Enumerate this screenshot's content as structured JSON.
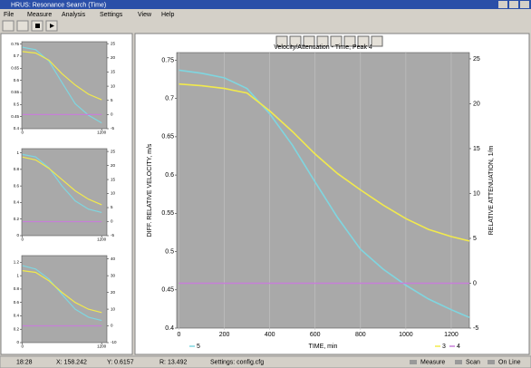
{
  "window": {
    "title": "HRUS: Resonance Search (Time)"
  },
  "menu": [
    "File",
    "Measure",
    "Analysis",
    "Settings",
    "View",
    "Help"
  ],
  "main_chart": {
    "type": "line",
    "title": "Velocity/Attenuation - Time, Peak 4",
    "x_label": "TIME, min",
    "y_label": "DIFF. RELATIVE VELOCITY, m/s",
    "y2_label": "RELATIVE ATTENUATION, 1/m",
    "xlim": [
      -10,
      1280
    ],
    "ylim": [
      0.4,
      0.76
    ],
    "y2lim": [
      -5,
      25.7
    ],
    "xticks": [
      0,
      200,
      400,
      600,
      800,
      1000,
      1200
    ],
    "yticks": [
      0.4,
      0.45,
      0.5,
      0.55,
      0.6,
      0.65,
      0.7,
      0.75
    ],
    "y2ticks": [
      -5,
      0,
      5,
      10,
      15,
      20,
      25
    ],
    "grid": true,
    "x": [
      0,
      100,
      200,
      300,
      400,
      500,
      600,
      700,
      800,
      900,
      1000,
      1100,
      1200,
      1280
    ],
    "series": [
      {
        "name": "5",
        "color": "#7fd6e0",
        "values": [
          0.737,
          0.733,
          0.727,
          0.713,
          0.68,
          0.639,
          0.591,
          0.544,
          0.503,
          0.477,
          0.456,
          0.438,
          0.424,
          0.414
        ]
      },
      {
        "name": "3",
        "color": "#f2ea4c",
        "axis": "y2",
        "values": [
          22.2,
          22,
          21.7,
          21.2,
          19.2,
          16.9,
          14.4,
          12.2,
          10.4,
          8.7,
          7.2,
          6,
          5.2,
          4.7
        ]
      },
      {
        "name": "4",
        "color": "#c77fd8",
        "axis": "y2",
        "values": [
          0,
          0,
          0,
          0,
          0,
          0,
          0,
          0,
          0,
          0,
          0,
          0,
          0,
          0
        ]
      }
    ]
  },
  "mini_charts": [
    {
      "type": "line",
      "xlim": [
        -10,
        1280
      ],
      "ylim": [
        0.4,
        0.76
      ],
      "y2lim": [
        -5,
        25.7
      ],
      "xticks": [
        0,
        1200
      ],
      "yticks": [
        0.4,
        0.45,
        0.5,
        0.55,
        0.6,
        0.65,
        0.7,
        0.75
      ],
      "y2ticks": [
        -5,
        0,
        5,
        10,
        15,
        20,
        25
      ],
      "x": [
        0,
        200,
        400,
        600,
        800,
        1000,
        1200
      ],
      "series": [
        {
          "color": "#7fd6e0",
          "values": [
            0.737,
            0.727,
            0.68,
            0.591,
            0.503,
            0.456,
            0.424
          ]
        },
        {
          "color": "#f2ea4c",
          "axis": "y2",
          "values": [
            22.2,
            21.7,
            19.2,
            14.4,
            10.4,
            7.2,
            5.2
          ]
        },
        {
          "color": "#c77fd8",
          "axis": "y2",
          "values": [
            0,
            0,
            0,
            0,
            0,
            0,
            0
          ]
        }
      ]
    },
    {
      "type": "line",
      "xlim": [
        -10,
        1280
      ],
      "ylim": [
        0,
        1.05
      ],
      "y2lim": [
        -5,
        26
      ],
      "xticks": [
        0,
        1200
      ],
      "yticks": [
        0,
        0.2,
        0.4,
        0.6,
        0.8,
        1
      ],
      "y2ticks": [
        -5,
        0,
        5,
        10,
        15,
        20,
        25
      ],
      "x": [
        0,
        200,
        400,
        600,
        800,
        1000,
        1200
      ],
      "series": [
        {
          "color": "#7fd6e0",
          "values": [
            0.98,
            0.95,
            0.82,
            0.6,
            0.42,
            0.32,
            0.28
          ]
        },
        {
          "color": "#f2ea4c",
          "axis": "y2",
          "values": [
            23,
            22,
            19,
            15,
            11,
            8,
            6
          ]
        },
        {
          "color": "#c77fd8",
          "axis": "y2",
          "values": [
            0,
            0,
            0,
            0,
            0,
            0,
            0
          ]
        }
      ]
    },
    {
      "type": "line",
      "xlim": [
        -10,
        1280
      ],
      "ylim": [
        0,
        1.3
      ],
      "y2lim": [
        -10,
        42
      ],
      "xticks": [
        0,
        1200
      ],
      "yticks": [
        0,
        0.2,
        0.4,
        0.6,
        0.8,
        1,
        1.2
      ],
      "y2ticks": [
        -10,
        0,
        10,
        20,
        30,
        40
      ],
      "x": [
        0,
        200,
        400,
        600,
        800,
        1000,
        1200
      ],
      "series": [
        {
          "color": "#7fd6e0",
          "values": [
            1.15,
            1.1,
            0.95,
            0.72,
            0.5,
            0.38,
            0.33
          ]
        },
        {
          "color": "#f2ea4c",
          "axis": "y2",
          "values": [
            33,
            32,
            27,
            20,
            14,
            10,
            8
          ]
        },
        {
          "color": "#c77fd8",
          "axis": "y2",
          "values": [
            0,
            0,
            0,
            0,
            0,
            0,
            0
          ]
        }
      ]
    }
  ],
  "status_bar": {
    "time": "18:28",
    "x": "X: 158.242",
    "y": "Y: 0.6157",
    "r": "R: 13.492",
    "settings": "Settings: config.cfg",
    "measure": "Measure",
    "scan": "Scan",
    "online": "On Line"
  }
}
